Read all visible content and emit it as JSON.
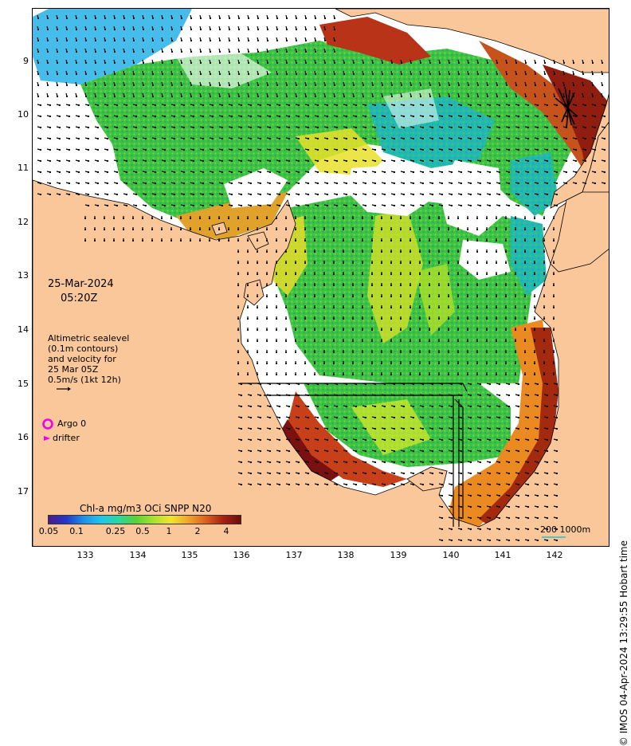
{
  "map": {
    "date_line1": "25-Mar-2024",
    "date_line2": "05:20Z",
    "note_lines": [
      "Altimetric sealevel",
      "(0.1m contours)",
      "and velocity for",
      "25 Mar 05Z",
      "0.5m/s (1kt 12h)"
    ],
    "argo_label": "Argo 0",
    "drifter_label": "drifter",
    "colorbar_title": "Chl-a mg/m3 OCi SNPP N20",
    "colorbar_ticks": [
      "0.05",
      "0.1",
      "0.25",
      "0.5",
      "1",
      "2",
      "4"
    ],
    "scale_label": "200  1000m",
    "credit": "© IMOS 04-Apr-2024 13:29:55 Hobart time",
    "lat_ticks": [
      "9",
      "10",
      "11",
      "12",
      "13",
      "14",
      "15",
      "16",
      "17"
    ],
    "lon_ticks": [
      "133",
      "134",
      "135",
      "136",
      "137",
      "138",
      "139",
      "140",
      "141",
      "142"
    ]
  },
  "colors": {
    "land": "#f9c79a",
    "cloud": "#ffffff",
    "argo": "#ee00ee",
    "drifter": "#ee00ee",
    "scale_bar": "#4fc9c0"
  },
  "colorbar_colors": [
    "#4b1c86",
    "#2336c9",
    "#1f8fe8",
    "#20c7e8",
    "#2bd6a0",
    "#5ad235",
    "#a9e22a",
    "#f0e62a",
    "#f2a52a",
    "#e0601c",
    "#a8210f",
    "#6b0d0d"
  ]
}
